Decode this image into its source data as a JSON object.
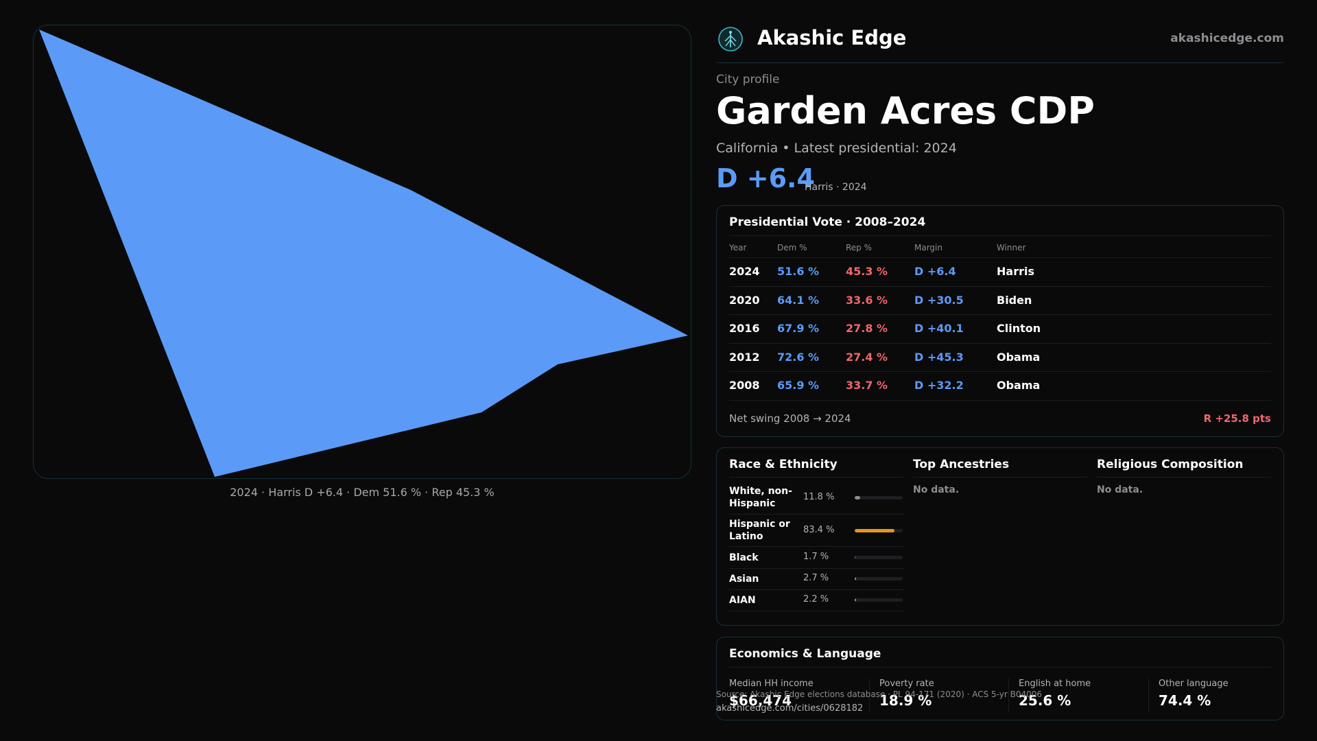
{
  "map": {
    "caption": "2024 · Harris D +6.4 · Dem 51.6 % · Rep 45.3 %",
    "fill_color": "#5b9bf7"
  },
  "brand": {
    "name": "Akashic Edge",
    "url": "akashicedge.com",
    "logo_icon": "tree-emblem-icon"
  },
  "profile": {
    "eyebrow": "City profile",
    "title": "Garden Acres CDP",
    "subtitle": "California • Latest presidential: 2024",
    "headline_margin": "D +6.4",
    "headline_note": "Harris · 2024"
  },
  "vote": {
    "title": "Presidential Vote · 2008–2024",
    "headers": {
      "year": "Year",
      "dem": "Dem %",
      "rep": "Rep %",
      "margin": "Margin",
      "winner": "Winner"
    },
    "rows": [
      {
        "year": "2024",
        "dem": "51.6 %",
        "rep": "45.3 %",
        "margin": "D +6.4",
        "winner": "Harris"
      },
      {
        "year": "2020",
        "dem": "64.1 %",
        "rep": "33.6 %",
        "margin": "D +30.5",
        "winner": "Biden"
      },
      {
        "year": "2016",
        "dem": "67.9 %",
        "rep": "27.8 %",
        "margin": "D +40.1",
        "winner": "Clinton"
      },
      {
        "year": "2012",
        "dem": "72.6 %",
        "rep": "27.4 %",
        "margin": "D +45.3",
        "winner": "Obama"
      },
      {
        "year": "2008",
        "dem": "65.9 %",
        "rep": "33.7 %",
        "margin": "D +32.2",
        "winner": "Obama"
      }
    ],
    "swing_label": "Net swing 2008 → 2024",
    "swing_value": "R +25.8 pts"
  },
  "race": {
    "title": "Race & Ethnicity",
    "rows": [
      {
        "label": "White, non-Hispanic",
        "pct": "11.8 %",
        "share": 0.118,
        "color": "#8d8d92"
      },
      {
        "label": "Hispanic or Latino",
        "pct": "83.4 %",
        "share": 0.834,
        "color": "#e8951f"
      },
      {
        "label": "Black",
        "pct": "1.7 %",
        "share": 0.017,
        "color": "#7b6cf0"
      },
      {
        "label": "Asian",
        "pct": "2.7 %",
        "share": 0.027,
        "color": "#35c07a"
      },
      {
        "label": "AIAN",
        "pct": "2.2 %",
        "share": 0.022,
        "color": "#c0813a"
      }
    ]
  },
  "ancestries": {
    "title": "Top Ancestries",
    "empty": "No data."
  },
  "religion": {
    "title": "Religious Composition",
    "empty": "No data."
  },
  "economics": {
    "title": "Economics & Language",
    "stats": [
      {
        "label": "Median HH income",
        "value": "$66,474"
      },
      {
        "label": "Poverty rate",
        "value": "18.9 %"
      },
      {
        "label": "English at home",
        "value": "25.6 %"
      },
      {
        "label": "Other language",
        "value": "74.4 %"
      }
    ]
  },
  "footer": {
    "source": "Source: Akashic Edge elections database · PL 94-171 (2020) · ACS 5-yr B04006",
    "url": "akashicedge.com/cities/0628182"
  }
}
